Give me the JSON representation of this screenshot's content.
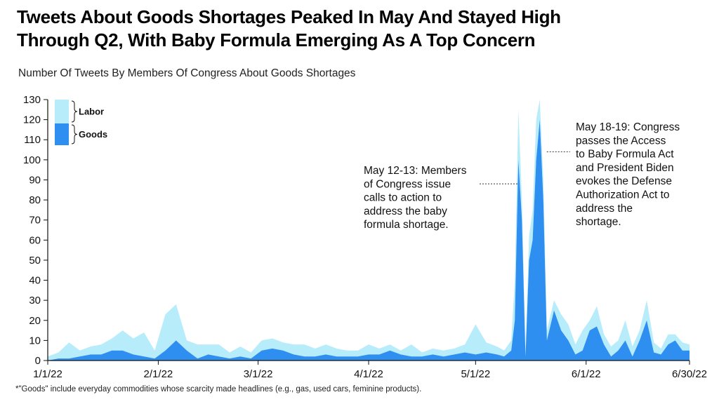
{
  "title_line1": "Tweets About Goods Shortages Peaked In May And Stayed High",
  "title_line2": "Through Q2, With Baby Formula Emerging As A Top Concern",
  "subtitle": "Number Of Tweets By Members Of Congress About Goods Shortages",
  "footnote": "*\"Goods\" include everyday commodities whose scarcity made headlines (e.g., gas, used cars, feminine products).",
  "colors": {
    "labor": "#b7ecfb",
    "goods": "#2f8ff0",
    "axis": "#111111"
  },
  "chart_data": {
    "type": "area",
    "stacked": true,
    "ylim": [
      0,
      130
    ],
    "yticks": [
      0,
      10,
      20,
      30,
      40,
      50,
      60,
      70,
      80,
      90,
      100,
      110,
      120,
      130
    ],
    "xlim": [
      "2022-01-01",
      "2022-06-30"
    ],
    "xticks": [
      {
        "date": "2022-01-01",
        "label": "1/1/22"
      },
      {
        "date": "2022-02-01",
        "label": "2/1/22"
      },
      {
        "date": "2022-03-01",
        "label": "3/1/22"
      },
      {
        "date": "2022-04-01",
        "label": "4/1/22"
      },
      {
        "date": "2022-05-01",
        "label": "5/1/22"
      },
      {
        "date": "2022-06-01",
        "label": "6/1/22"
      },
      {
        "date": "2022-06-30",
        "label": "6/30/22"
      }
    ],
    "legend": {
      "position": "top-left",
      "labels": [
        "Labor",
        "Goods"
      ]
    },
    "series": [
      {
        "name": "Goods",
        "x": [
          "2022-01-01",
          "2022-01-04",
          "2022-01-07",
          "2022-01-10",
          "2022-01-13",
          "2022-01-16",
          "2022-01-19",
          "2022-01-22",
          "2022-01-25",
          "2022-01-28",
          "2022-01-31",
          "2022-02-03",
          "2022-02-06",
          "2022-02-09",
          "2022-02-12",
          "2022-02-15",
          "2022-02-18",
          "2022-02-21",
          "2022-02-24",
          "2022-02-27",
          "2022-03-02",
          "2022-03-05",
          "2022-03-08",
          "2022-03-11",
          "2022-03-14",
          "2022-03-17",
          "2022-03-20",
          "2022-03-23",
          "2022-03-26",
          "2022-03-29",
          "2022-04-01",
          "2022-04-04",
          "2022-04-07",
          "2022-04-10",
          "2022-04-13",
          "2022-04-16",
          "2022-04-19",
          "2022-04-22",
          "2022-04-25",
          "2022-04-28",
          "2022-05-01",
          "2022-05-04",
          "2022-05-07",
          "2022-05-09",
          "2022-05-11",
          "2022-05-12",
          "2022-05-13",
          "2022-05-14",
          "2022-05-15",
          "2022-05-16",
          "2022-05-17",
          "2022-05-18",
          "2022-05-19",
          "2022-05-20",
          "2022-05-21",
          "2022-05-23",
          "2022-05-25",
          "2022-05-27",
          "2022-05-29",
          "2022-05-31",
          "2022-06-02",
          "2022-06-04",
          "2022-06-06",
          "2022-06-08",
          "2022-06-10",
          "2022-06-12",
          "2022-06-14",
          "2022-06-16",
          "2022-06-18",
          "2022-06-20",
          "2022-06-22",
          "2022-06-24",
          "2022-06-26",
          "2022-06-28",
          "2022-06-30"
        ],
        "values": [
          0,
          1,
          1,
          2,
          3,
          3,
          5,
          5,
          3,
          2,
          1,
          5,
          10,
          5,
          1,
          3,
          2,
          1,
          2,
          1,
          5,
          6,
          5,
          3,
          2,
          2,
          3,
          2,
          2,
          2,
          3,
          3,
          5,
          3,
          2,
          2,
          3,
          2,
          3,
          4,
          3,
          4,
          3,
          2,
          5,
          20,
          100,
          70,
          2,
          50,
          60,
          100,
          120,
          80,
          10,
          25,
          15,
          10,
          3,
          5,
          15,
          17,
          8,
          2,
          5,
          10,
          2,
          10,
          20,
          4,
          3,
          8,
          10,
          5,
          5
        ]
      },
      {
        "name": "Labor",
        "x": [
          "2022-01-01",
          "2022-01-04",
          "2022-01-07",
          "2022-01-10",
          "2022-01-13",
          "2022-01-16",
          "2022-01-19",
          "2022-01-22",
          "2022-01-25",
          "2022-01-28",
          "2022-01-31",
          "2022-02-03",
          "2022-02-06",
          "2022-02-09",
          "2022-02-12",
          "2022-02-15",
          "2022-02-18",
          "2022-02-21",
          "2022-02-24",
          "2022-02-27",
          "2022-03-02",
          "2022-03-05",
          "2022-03-08",
          "2022-03-11",
          "2022-03-14",
          "2022-03-17",
          "2022-03-20",
          "2022-03-23",
          "2022-03-26",
          "2022-03-29",
          "2022-04-01",
          "2022-04-04",
          "2022-04-07",
          "2022-04-10",
          "2022-04-13",
          "2022-04-16",
          "2022-04-19",
          "2022-04-22",
          "2022-04-25",
          "2022-04-28",
          "2022-05-01",
          "2022-05-04",
          "2022-05-07",
          "2022-05-09",
          "2022-05-11",
          "2022-05-12",
          "2022-05-13",
          "2022-05-14",
          "2022-05-15",
          "2022-05-16",
          "2022-05-17",
          "2022-05-18",
          "2022-05-19",
          "2022-05-20",
          "2022-05-21",
          "2022-05-23",
          "2022-05-25",
          "2022-05-27",
          "2022-05-29",
          "2022-05-31",
          "2022-06-02",
          "2022-06-04",
          "2022-06-06",
          "2022-06-08",
          "2022-06-10",
          "2022-06-12",
          "2022-06-14",
          "2022-06-16",
          "2022-06-18",
          "2022-06-20",
          "2022-06-22",
          "2022-06-24",
          "2022-06-26",
          "2022-06-28",
          "2022-06-30"
        ],
        "values": [
          2,
          3,
          8,
          3,
          4,
          5,
          6,
          10,
          8,
          12,
          4,
          18,
          18,
          5,
          7,
          5,
          6,
          3,
          5,
          3,
          5,
          5,
          4,
          5,
          6,
          4,
          5,
          4,
          3,
          3,
          5,
          3,
          3,
          2,
          6,
          2,
          3,
          3,
          3,
          4,
          15,
          5,
          4,
          3,
          5,
          20,
          25,
          10,
          2,
          12,
          15,
          20,
          10,
          10,
          5,
          5,
          8,
          8,
          5,
          10,
          5,
          10,
          5,
          5,
          5,
          10,
          5,
          5,
          10,
          5,
          3,
          5,
          3,
          4,
          3
        ]
      }
    ],
    "annotations": [
      {
        "date": "2022-05-12",
        "y": 88,
        "text": [
          "May 12-13: Members",
          "of Congress issue",
          "calls to action to",
          "address the baby",
          "formula shortage."
        ]
      },
      {
        "date": "2022-05-19",
        "y": 104,
        "text": [
          "May 18-19: Congress",
          "passes the Access",
          "to Baby Formula Act",
          "and President Biden",
          "evokes the Defense",
          "Authorization Act to",
          "address the",
          "shortage."
        ]
      }
    ]
  }
}
